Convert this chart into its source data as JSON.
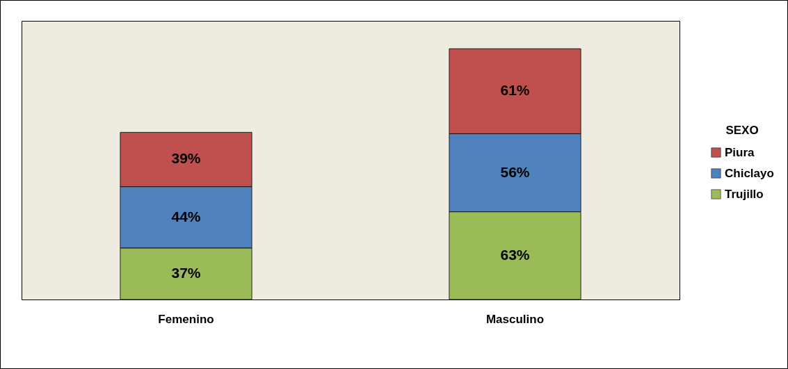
{
  "chart_data": {
    "type": "bar",
    "stacked": true,
    "categories": [
      "Femenino",
      "Masculino"
    ],
    "legend_title": "SEXO",
    "legend": "right",
    "grid": false,
    "series": [
      {
        "name": "Trujillo",
        "color": "#9bbb59",
        "values": [
          37,
          63
        ],
        "value_labels": [
          "37%",
          "63%"
        ]
      },
      {
        "name": "Chiclayo",
        "color": "#4f81bd",
        "values": [
          44,
          56
        ],
        "value_labels": [
          "44%",
          "56%"
        ]
      },
      {
        "name": "Piura",
        "color": "#c0504d",
        "values": [
          39,
          61
        ],
        "value_labels": [
          "39%",
          "61%"
        ]
      }
    ]
  }
}
